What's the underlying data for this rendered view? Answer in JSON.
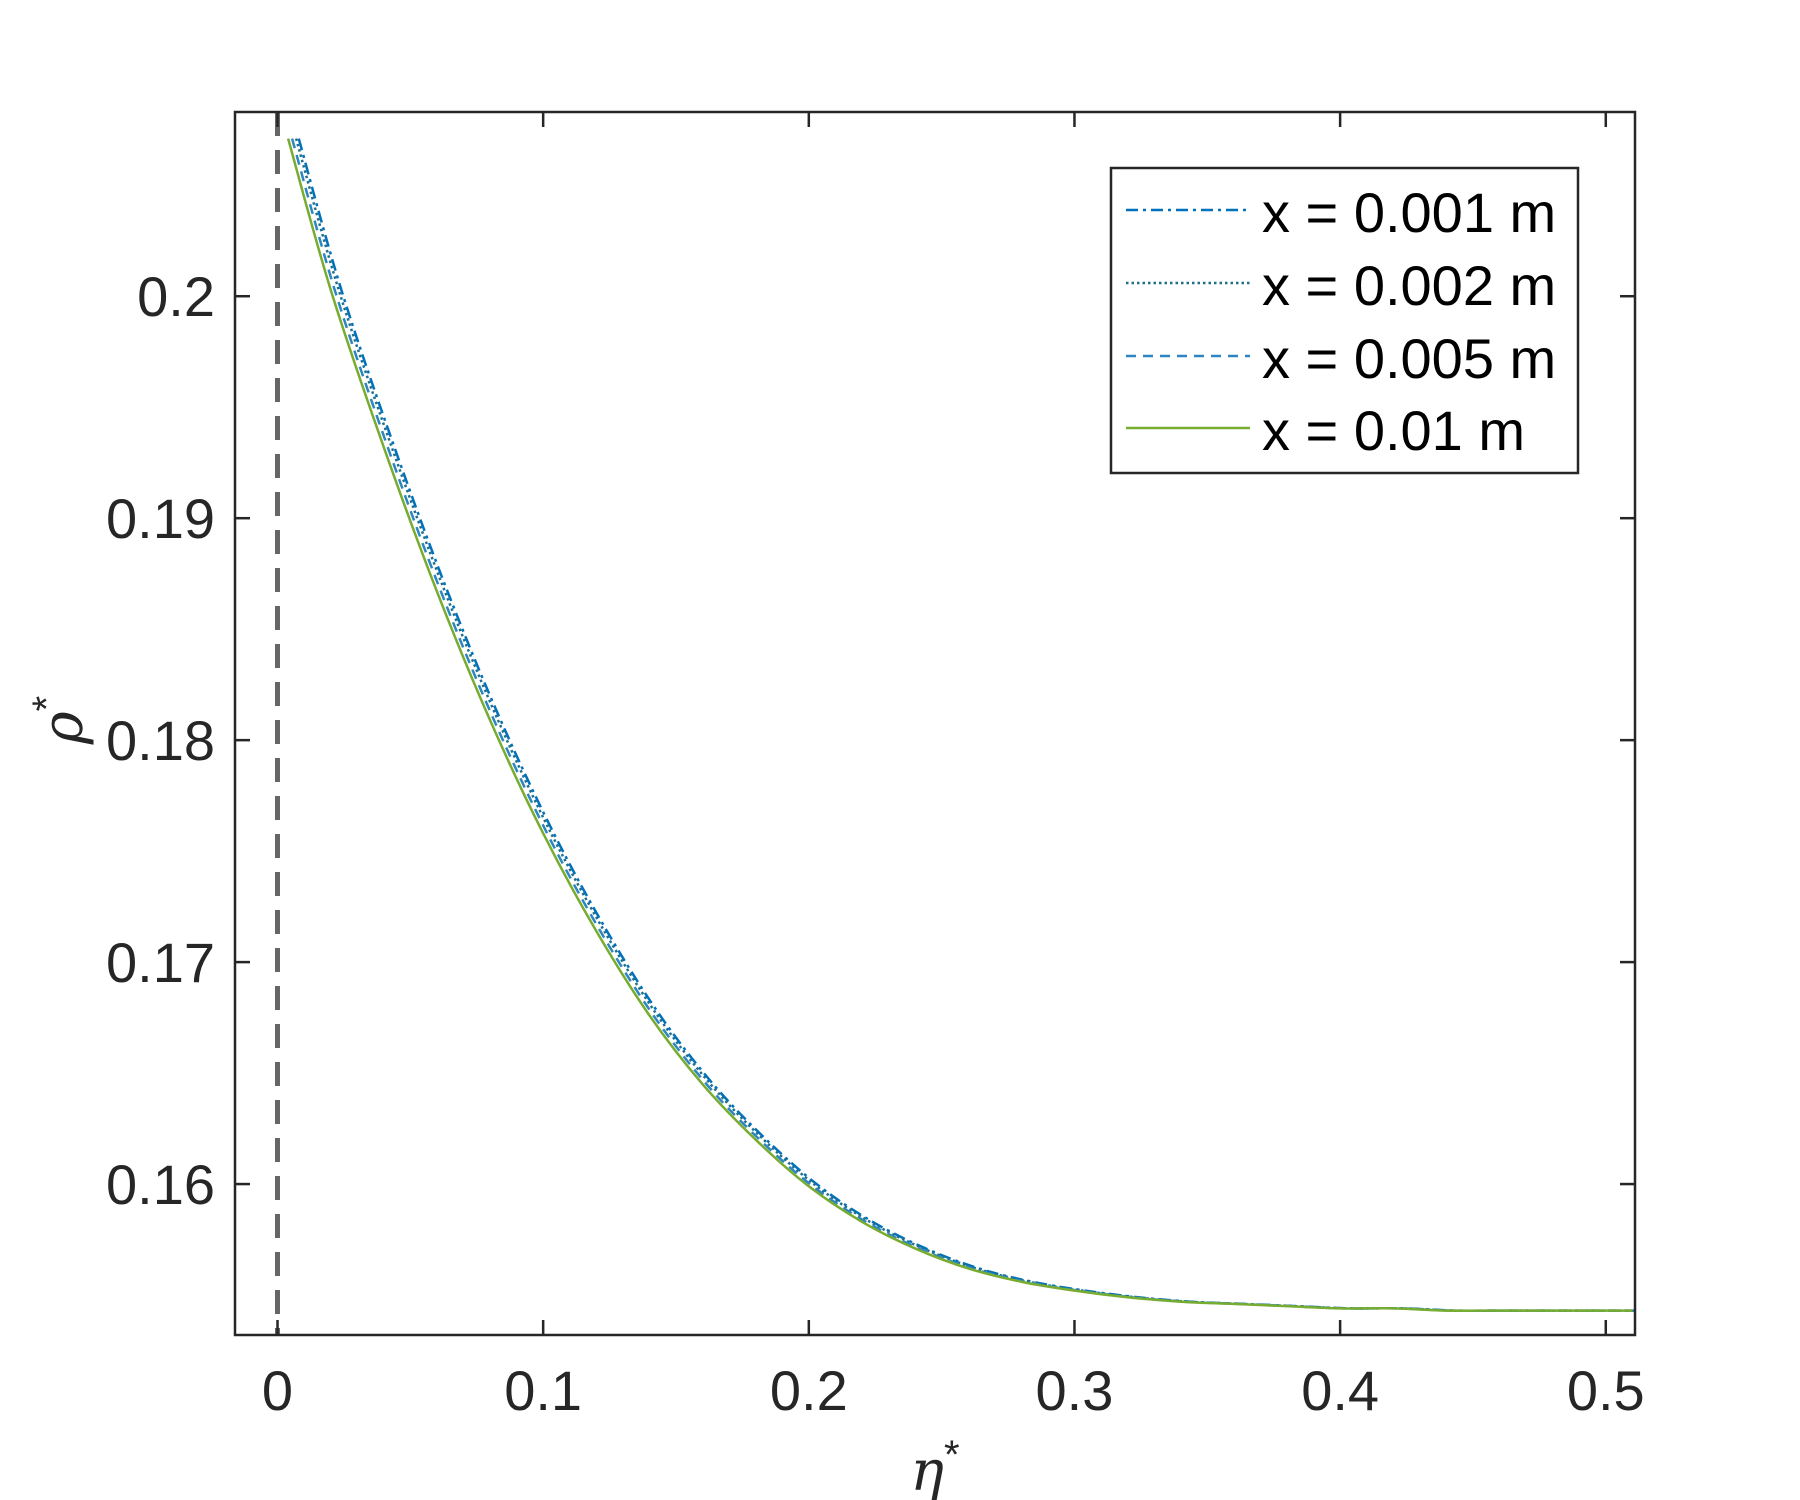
{
  "chart_data": {
    "type": "line",
    "xlabel": "η",
    "xlabel_superscript": "*",
    "ylabel": "ρ",
    "ylabel_superscript": "*",
    "xlim": [
      -0.016,
      0.511
    ],
    "ylim": [
      0.1532,
      0.2083
    ],
    "xticks": [
      0,
      0.1,
      0.2,
      0.3,
      0.4,
      0.5
    ],
    "xtick_labels": [
      "0",
      "0.1",
      "0.2",
      "0.3",
      "0.4",
      "0.5"
    ],
    "yticks": [
      0.16,
      0.17,
      0.18,
      0.19,
      0.2
    ],
    "ytick_labels": [
      "0.16",
      "0.17",
      "0.18",
      "0.19",
      "0.2"
    ],
    "grid": false,
    "legend_position": "top-right",
    "reference_line": {
      "x": 0,
      "style": "dashed",
      "color": "#666666"
    },
    "x": [
      0.004,
      0.02,
      0.04,
      0.06,
      0.08,
      0.1,
      0.12,
      0.14,
      0.16,
      0.18,
      0.2,
      0.22,
      0.24,
      0.26,
      0.28,
      0.3,
      0.32,
      0.34,
      0.36,
      0.38,
      0.4,
      0.42,
      0.44,
      0.46,
      0.48,
      0.5,
      0.51
    ],
    "series": [
      {
        "name": "x = 0.001 m",
        "color": "#0072BD",
        "dash": "dashdot",
        "x_offset": 0.004,
        "values": [
          0.2071,
          0.2003,
          0.1932,
          0.1867,
          0.1809,
          0.1758,
          0.1714,
          0.1676,
          0.1645,
          0.162,
          0.1599,
          0.1583,
          0.1571,
          0.1562,
          0.1556,
          0.1552,
          0.1549,
          0.1547,
          0.1546,
          0.1545,
          0.1544,
          0.1544,
          0.1543,
          0.1543,
          0.1543,
          0.1543,
          0.1543
        ]
      },
      {
        "name": "x = 0.002 m",
        "color": "#1F6F8B",
        "dash": "dotted",
        "x_offset": 0.003,
        "values": [
          0.2071,
          0.2003,
          0.1932,
          0.1867,
          0.1809,
          0.1758,
          0.1714,
          0.1676,
          0.1645,
          0.162,
          0.1599,
          0.1583,
          0.1571,
          0.1562,
          0.1556,
          0.1552,
          0.1549,
          0.1547,
          0.1546,
          0.1545,
          0.1544,
          0.1544,
          0.1543,
          0.1543,
          0.1543,
          0.1543,
          0.1543
        ]
      },
      {
        "name": "x = 0.005 m",
        "color": "#2E86C1",
        "dash": "dashed",
        "x_offset": 0.0015,
        "values": [
          0.2071,
          0.2003,
          0.1932,
          0.1867,
          0.1809,
          0.1758,
          0.1714,
          0.1676,
          0.1645,
          0.162,
          0.1599,
          0.1583,
          0.1571,
          0.1562,
          0.1556,
          0.1552,
          0.1549,
          0.1547,
          0.1546,
          0.1545,
          0.1544,
          0.1544,
          0.1543,
          0.1543,
          0.1543,
          0.1543,
          0.1543
        ]
      },
      {
        "name": "x = 0.01 m",
        "color": "#77AC30",
        "dash": "solid",
        "x_offset": 0,
        "values": [
          0.2071,
          0.2003,
          0.1932,
          0.1867,
          0.1809,
          0.1758,
          0.1714,
          0.1676,
          0.1645,
          0.162,
          0.1599,
          0.1583,
          0.1571,
          0.1562,
          0.1556,
          0.1552,
          0.1549,
          0.1547,
          0.1546,
          0.1545,
          0.1544,
          0.1544,
          0.1543,
          0.1543,
          0.1543,
          0.1543,
          0.1543
        ]
      }
    ]
  }
}
